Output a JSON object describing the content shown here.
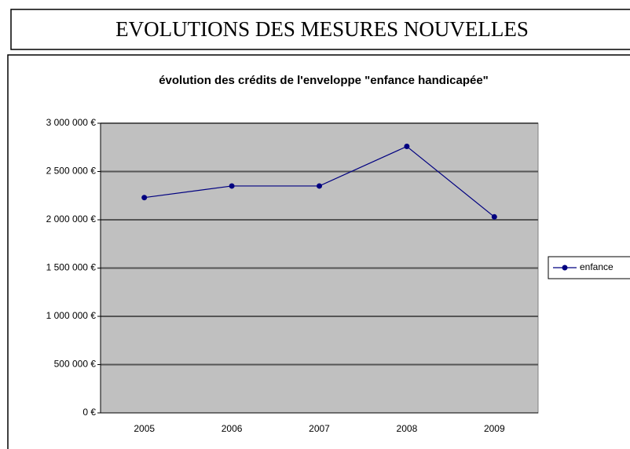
{
  "chart_data": {
    "type": "line",
    "page_title": "EVOLUTIONS DES MESURES NOUVELLES",
    "title": "évolution des crédits de l'enveloppe \"enfance handicapée\"",
    "categories": [
      "2005",
      "2006",
      "2007",
      "2008",
      "2009"
    ],
    "series": [
      {
        "name": "enfance",
        "color": "#000080",
        "values": [
          2230000,
          2350000,
          2350000,
          2760000,
          2030000
        ]
      }
    ],
    "ylim": [
      0,
      3000000
    ],
    "yticks": [
      {
        "value": 0,
        "label": "0 €"
      },
      {
        "value": 500000,
        "label": "500 000 €"
      },
      {
        "value": 1000000,
        "label": "1 000 000 €"
      },
      {
        "value": 1500000,
        "label": "1 500 000 €"
      },
      {
        "value": 2000000,
        "label": "2 000 000 €"
      },
      {
        "value": 2500000,
        "label": "2 500 000 €"
      },
      {
        "value": 3000000,
        "label": "3 000 000 €"
      }
    ],
    "grid": true,
    "legend": "right",
    "plot_background": "#c0c0c0"
  }
}
